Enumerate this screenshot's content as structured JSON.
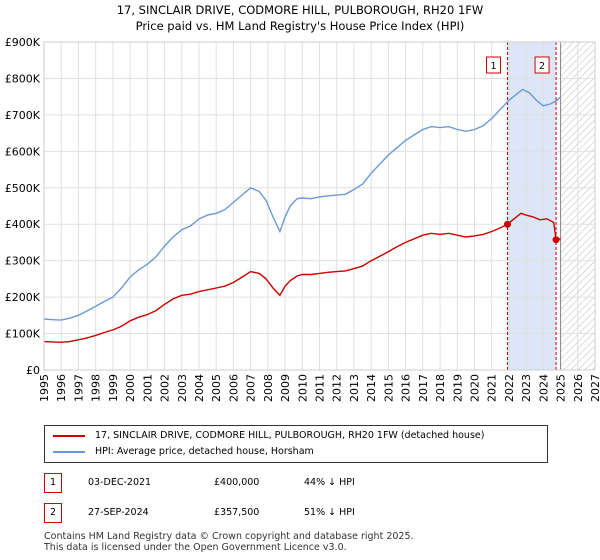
{
  "chart_data": {
    "type": "line",
    "title": "17, SINCLAIR DRIVE, CODMORE HILL, PULBOROUGH, RH20 1FW",
    "subtitle": "Price paid vs. HM Land Registry's House Price Index (HPI)",
    "xlim": [
      1995,
      2027
    ],
    "ylim": [
      0,
      900000
    ],
    "x_ticks": [
      "1995",
      "1996",
      "1997",
      "1998",
      "1999",
      "2000",
      "2001",
      "2002",
      "2003",
      "2004",
      "2005",
      "2006",
      "2007",
      "2008",
      "2009",
      "2010",
      "2011",
      "2012",
      "2013",
      "2014",
      "2015",
      "2016",
      "2017",
      "2018",
      "2019",
      "2020",
      "2021",
      "2022",
      "2023",
      "2024",
      "2025",
      "2026",
      "2027"
    ],
    "y_ticks": [
      {
        "value": 0,
        "label": "£0"
      },
      {
        "value": 100000,
        "label": "£100K"
      },
      {
        "value": 200000,
        "label": "£200K"
      },
      {
        "value": 300000,
        "label": "£300K"
      },
      {
        "value": 400000,
        "label": "£400K"
      },
      {
        "value": 500000,
        "label": "£500K"
      },
      {
        "value": 600000,
        "label": "£600K"
      },
      {
        "value": 700000,
        "label": "£700K"
      },
      {
        "value": 800000,
        "label": "£800K"
      },
      {
        "value": 900000,
        "label": "£900K"
      }
    ],
    "grid": true,
    "shaded_region": {
      "from": 2021.92,
      "to": 2024.74,
      "color": "#dde6f7"
    },
    "future_hatch_from": 2025.0,
    "series": [
      {
        "name": "17, SINCLAIR DRIVE, CODMORE HILL, PULBOROUGH, RH20 1FW (detached house)",
        "color": "#cc0000",
        "x": [
          1995,
          1995.5,
          1996,
          1996.5,
          1997,
          1997.5,
          1998,
          1998.5,
          1999,
          1999.5,
          2000,
          2000.5,
          2001,
          2001.5,
          2002,
          2002.5,
          2003,
          2003.5,
          2004,
          2004.5,
          2005,
          2005.5,
          2006,
          2006.5,
          2007,
          2007.5,
          2007.9,
          2008.3,
          2008.7,
          2009.0,
          2009.3,
          2009.7,
          2010,
          2010.5,
          2011,
          2011.5,
          2012,
          2012.5,
          2013,
          2013.5,
          2014,
          2014.5,
          2015,
          2015.5,
          2016,
          2016.5,
          2017,
          2017.5,
          2018,
          2018.5,
          2019,
          2019.5,
          2020,
          2020.5,
          2021,
          2021.5,
          2021.92,
          2022.3,
          2022.7,
          2023.0,
          2023.4,
          2023.8,
          2024.2,
          2024.6,
          2024.74,
          2025.0
        ],
        "values": [
          78000,
          77000,
          76000,
          78000,
          83000,
          88000,
          95000,
          103000,
          110000,
          120000,
          135000,
          145000,
          152000,
          163000,
          180000,
          195000,
          205000,
          208000,
          215000,
          220000,
          225000,
          230000,
          240000,
          255000,
          270000,
          265000,
          250000,
          225000,
          205000,
          230000,
          245000,
          258000,
          262000,
          262000,
          265000,
          268000,
          270000,
          272000,
          278000,
          285000,
          300000,
          312000,
          325000,
          338000,
          350000,
          360000,
          370000,
          375000,
          372000,
          375000,
          370000,
          365000,
          368000,
          372000,
          380000,
          390000,
          400000,
          415000,
          430000,
          425000,
          420000,
          412000,
          415000,
          405000,
          357500,
          360000
        ]
      },
      {
        "name": "HPI: Average price, detached house, Horsham",
        "color": "#6a9ad4",
        "x": [
          1995,
          1995.5,
          1996,
          1996.5,
          1997,
          1997.5,
          1998,
          1998.5,
          1999,
          1999.5,
          2000,
          2000.5,
          2001,
          2001.5,
          2002,
          2002.5,
          2003,
          2003.5,
          2004,
          2004.5,
          2005,
          2005.5,
          2006,
          2006.5,
          2007,
          2007.5,
          2007.9,
          2008.3,
          2008.7,
          2009.0,
          2009.3,
          2009.7,
          2010,
          2010.5,
          2011,
          2011.5,
          2012,
          2012.5,
          2013,
          2013.5,
          2014,
          2014.5,
          2015,
          2015.5,
          2016,
          2016.5,
          2017,
          2017.5,
          2018,
          2018.5,
          2019,
          2019.5,
          2020,
          2020.5,
          2021,
          2021.5,
          2022.0,
          2022.4,
          2022.8,
          2023.2,
          2023.6,
          2024.0,
          2024.4,
          2024.8,
          2025.0
        ],
        "values": [
          140000,
          138000,
          137000,
          142000,
          150000,
          162000,
          175000,
          188000,
          200000,
          225000,
          255000,
          275000,
          290000,
          310000,
          340000,
          365000,
          385000,
          395000,
          415000,
          425000,
          430000,
          440000,
          460000,
          480000,
          500000,
          490000,
          465000,
          420000,
          380000,
          420000,
          450000,
          470000,
          472000,
          470000,
          475000,
          478000,
          480000,
          482000,
          495000,
          510000,
          540000,
          565000,
          590000,
          610000,
          630000,
          645000,
          660000,
          668000,
          665000,
          668000,
          660000,
          655000,
          660000,
          670000,
          690000,
          715000,
          740000,
          755000,
          770000,
          760000,
          740000,
          725000,
          730000,
          740000,
          750000
        ]
      }
    ],
    "markers": [
      {
        "label": "1",
        "x": 2021.92,
        "value": 400000
      },
      {
        "label": "2",
        "x": 2024.74,
        "value": 357500
      }
    ]
  },
  "legend": {
    "items": [
      {
        "label": "17, SINCLAIR DRIVE, CODMORE HILL, PULBOROUGH, RH20 1FW (detached house)",
        "color": "#cc0000"
      },
      {
        "label": "HPI: Average price, detached house, Horsham",
        "color": "#6a9ad4"
      }
    ]
  },
  "transactions": [
    {
      "num": "1",
      "date": "03-DEC-2021",
      "price": "£400,000",
      "pct": "44% ↓ HPI"
    },
    {
      "num": "2",
      "date": "27-SEP-2024",
      "price": "£357,500",
      "pct": "51% ↓ HPI"
    }
  ],
  "footer": {
    "line1": "Contains HM Land Registry data © Crown copyright and database right 2025.",
    "line2": "This data is licensed under the Open Government Licence v3.0."
  }
}
